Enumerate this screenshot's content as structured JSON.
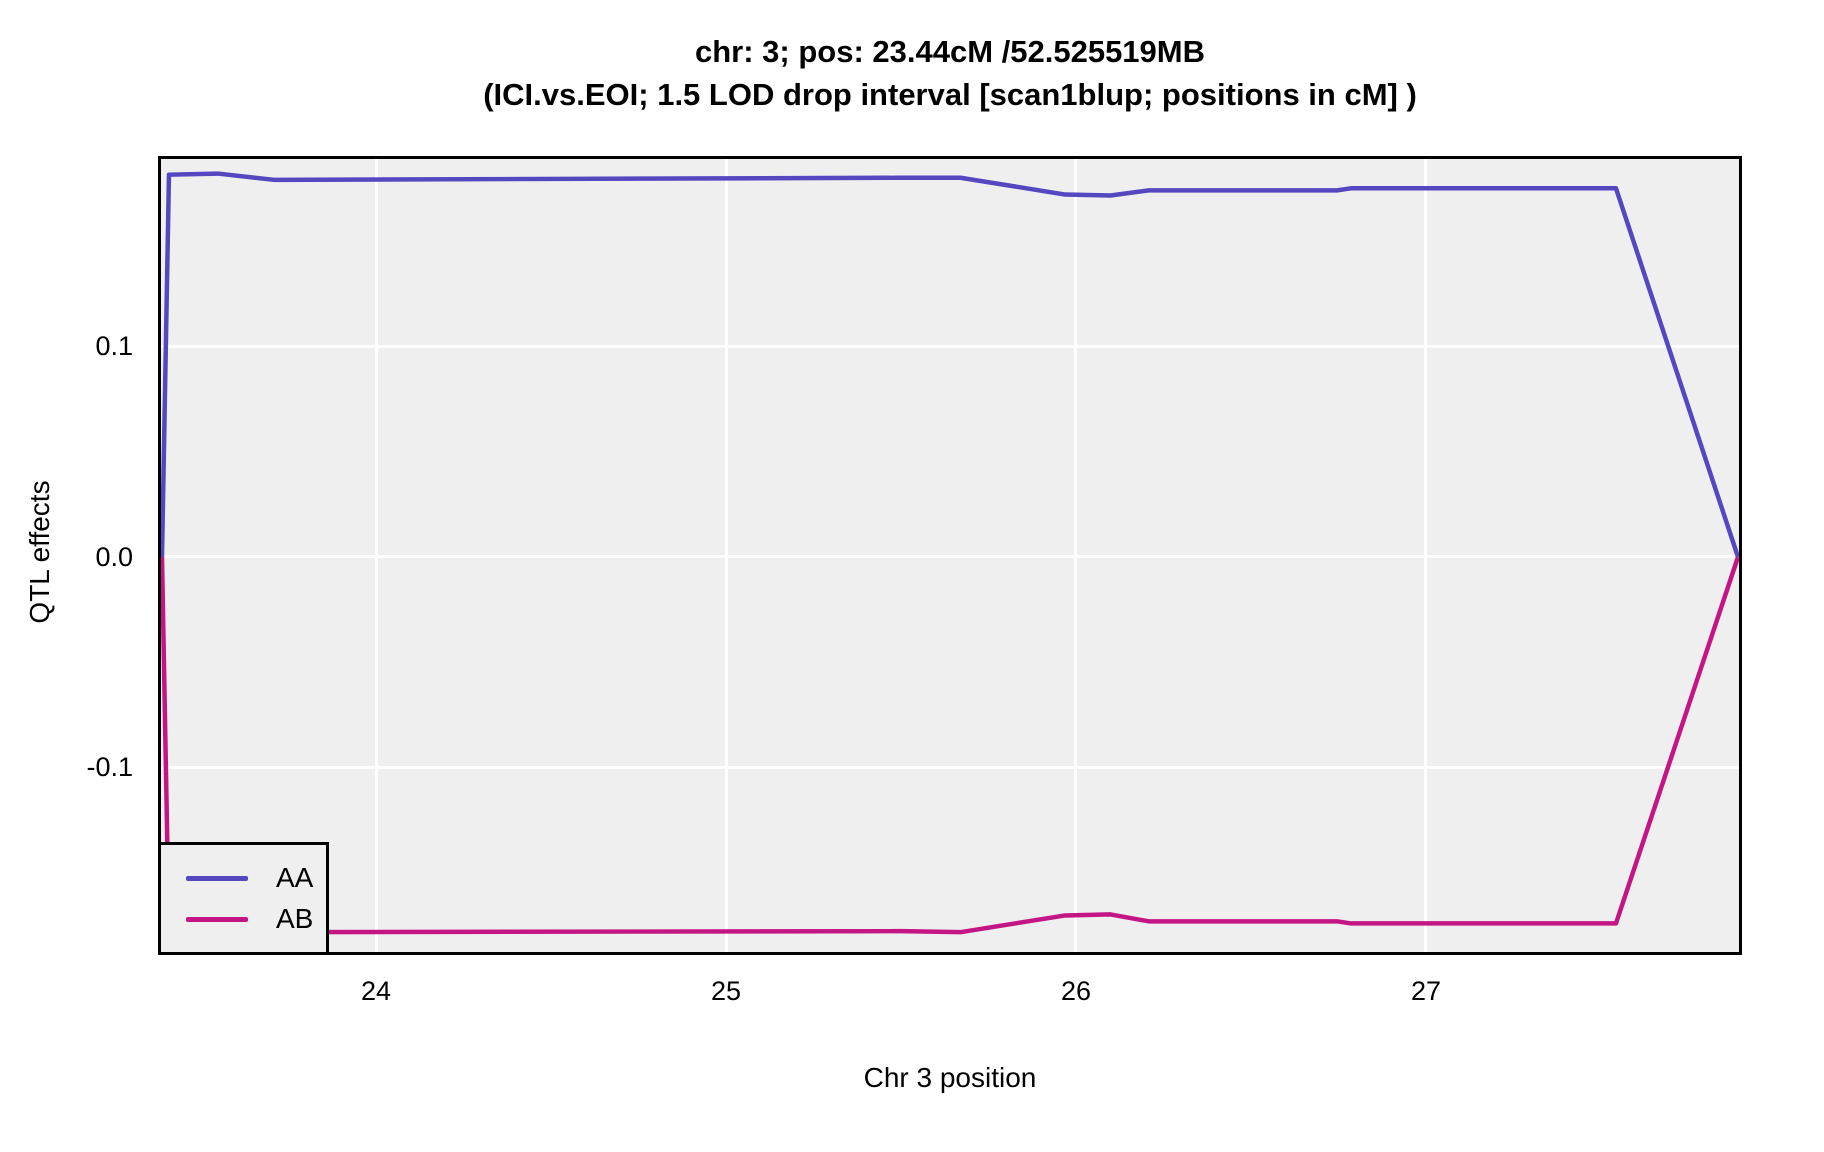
{
  "title": {
    "line1": "chr: 3; pos: 23.44cM /52.525519MB",
    "line2": "(ICI.vs.EOI; 1.5 LOD drop interval [scan1blup; positions in cM] )"
  },
  "colors": {
    "panel_background": "#EFEFEF",
    "gridline": "#FFFFFF",
    "panel_border": "#000000",
    "aa_line": "#5447BF",
    "ab_line": "#C41585",
    "text": "#000000"
  },
  "chart_data": {
    "type": "line",
    "title": "chr: 3; pos: 23.44cM /52.525519MB",
    "subtitle": "(ICI.vs.EOI; 1.5 LOD drop interval [scan1blup; positions in cM] )",
    "xlabel": "Chr 3 position",
    "ylabel": "QTL effects",
    "xlim": [
      23.377,
      27.903
    ],
    "ylim": [
      -0.1891,
      0.1905
    ],
    "x_ticks": [
      24,
      25,
      26,
      27
    ],
    "x_tick_labels": [
      "24",
      "25",
      "26",
      "27"
    ],
    "y_ticks": [
      0.1,
      0.0,
      -0.1
    ],
    "y_tick_labels": [
      "0.1",
      "0.0",
      "-0.1"
    ],
    "grid": "major gridlines only, white on gray panel",
    "legend_position": "bottom-left inside panel",
    "series": [
      {
        "name": "AA",
        "color": "#5447BF",
        "x": [
          23.38,
          23.4,
          23.54,
          23.7,
          25.5,
          25.67,
          25.97,
          26.1,
          26.21,
          26.75,
          26.79,
          27.55,
          27.9
        ],
        "y": [
          0.0,
          0.183,
          0.1835,
          0.1805,
          0.1815,
          0.1815,
          0.1735,
          0.173,
          0.1755,
          0.1755,
          0.1765,
          0.1765,
          0.0
        ]
      },
      {
        "name": "AB",
        "color": "#C41585",
        "x": [
          23.38,
          23.4,
          23.54,
          23.7,
          25.5,
          25.67,
          25.97,
          26.1,
          26.21,
          26.75,
          26.79,
          27.55,
          27.9
        ],
        "y": [
          0.0,
          -0.18,
          -0.1806,
          -0.1796,
          -0.1791,
          -0.1796,
          -0.1716,
          -0.1711,
          -0.1744,
          -0.1744,
          -0.1754,
          -0.1754,
          0.0
        ]
      }
    ]
  }
}
